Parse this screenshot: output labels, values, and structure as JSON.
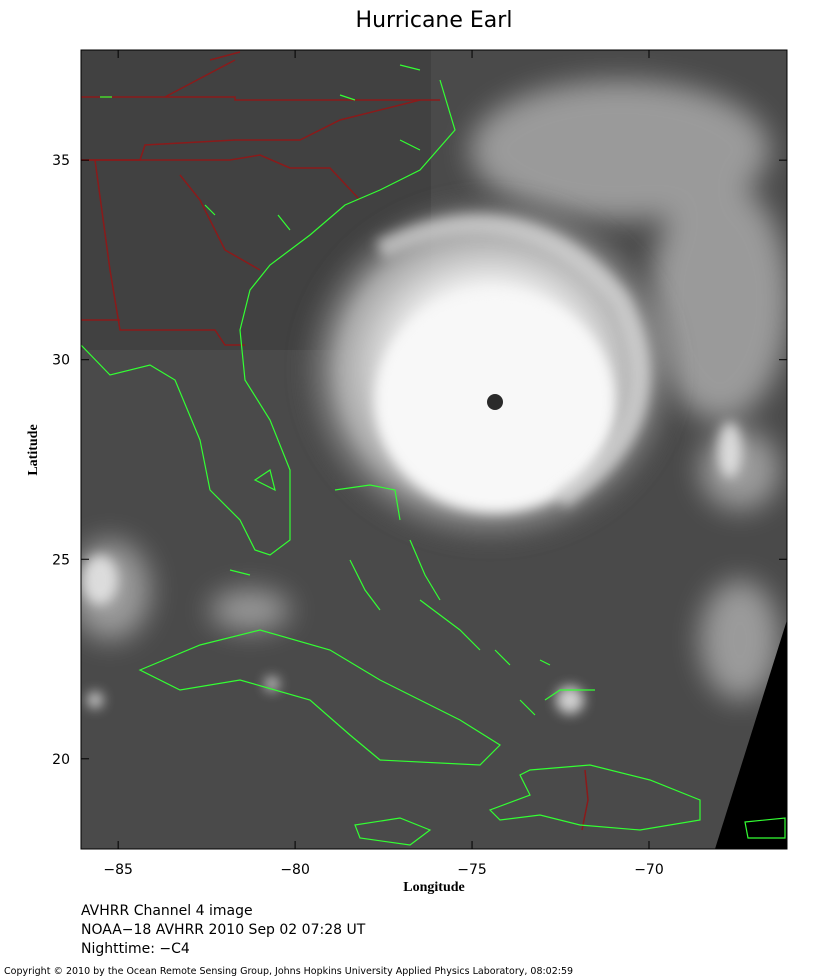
{
  "title": "Hurricane Earl",
  "x_label": "Longitude",
  "y_label": "Latitude",
  "xlim": [
    -86.05,
    -66.1
  ],
  "ylim": [
    17.74,
    37.76
  ],
  "xticks": [
    {
      "value": -85,
      "label": "−85"
    },
    {
      "value": -80,
      "label": "−80"
    },
    {
      "value": -75,
      "label": "−75"
    },
    {
      "value": -70,
      "label": "−70"
    }
  ],
  "yticks": [
    20,
    25,
    30,
    35
  ],
  "captions": [
    "AVHRR Channel 4 image",
    "NOAA−18 AVHRR 2010 Sep 02 07:28 UT",
    "Nighttime: −C4"
  ],
  "copyright": "Copyright © 2010 by the Ocean Remote Sensing Group, Johns Hopkins University Applied Physics Laboratory, 08:02:59"
}
